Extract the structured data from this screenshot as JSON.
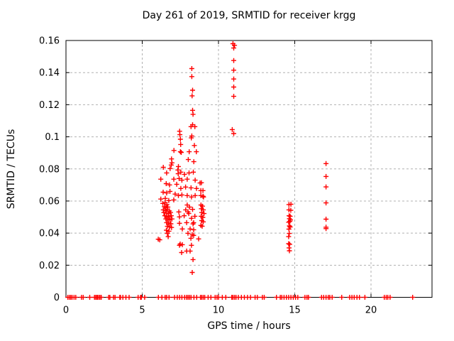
{
  "window": {
    "title": "Day 261 of 2019, SRMTID for receiver krgg"
  },
  "colors": {
    "background": "#ffffff",
    "marker": "#ff0000",
    "grid": "#b0b0b0",
    "axis": "#000000",
    "text": "#000000"
  },
  "chart_data": {
    "type": "scatter",
    "title": "Day 261 of 2019, SRMTID for receiver krgg",
    "xlabel": "GPS time / hours",
    "ylabel": "SRMTID / TECUs",
    "xlim": [
      0,
      24
    ],
    "ylim": [
      0,
      0.16
    ],
    "xticks": [
      0,
      5,
      10,
      15,
      20
    ],
    "xtick_labels": [
      "0",
      "5",
      "10",
      "15",
      "20"
    ],
    "yticks": [
      0,
      0.02,
      0.04,
      0.06,
      0.08,
      0.1,
      0.12,
      0.14,
      0.16
    ],
    "ytick_labels": [
      "0",
      "0.02",
      "0.04",
      "0.06",
      "0.08",
      "0.1",
      "0.12",
      "0.14",
      "0.16"
    ],
    "grid": true,
    "grid_style": "dashed",
    "legend": "none",
    "marker": "plus",
    "marker_size": 7,
    "series": [
      {
        "name": "SRMTID",
        "color": "#ff0000",
        "points": [
          [
            8.25,
            0.1425
          ],
          [
            8.25,
            0.1375
          ],
          [
            8.3,
            0.129
          ],
          [
            8.27,
            0.1255
          ],
          [
            8.3,
            0.1165
          ],
          [
            8.33,
            0.114
          ],
          [
            8.3,
            0.1075
          ],
          [
            8.2,
            0.1063
          ],
          [
            8.45,
            0.1063
          ],
          [
            8.25,
            0.1005
          ],
          [
            8.22,
            0.0993
          ],
          [
            7.45,
            0.1035
          ],
          [
            7.47,
            0.1013
          ],
          [
            7.5,
            0.0985
          ],
          [
            7.52,
            0.0952
          ],
          [
            7.5,
            0.0907
          ],
          [
            7.56,
            0.0903
          ],
          [
            7.08,
            0.0915
          ],
          [
            8.08,
            0.0907
          ],
          [
            8.42,
            0.0946
          ],
          [
            8.55,
            0.0907
          ],
          [
            8.02,
            0.0858
          ],
          [
            8.38,
            0.0845
          ],
          [
            6.92,
            0.0862
          ],
          [
            6.95,
            0.0838
          ],
          [
            6.9,
            0.0824
          ],
          [
            6.38,
            0.081
          ],
          [
            6.83,
            0.0802
          ],
          [
            7.37,
            0.0815
          ],
          [
            7.34,
            0.0793
          ],
          [
            6.6,
            0.0775
          ],
          [
            7.53,
            0.078
          ],
          [
            7.77,
            0.0766
          ],
          [
            8.07,
            0.0775
          ],
          [
            8.35,
            0.078
          ],
          [
            7.36,
            0.077
          ],
          [
            6.22,
            0.0736
          ],
          [
            7.07,
            0.0736
          ],
          [
            7.42,
            0.074
          ],
          [
            7.6,
            0.073
          ],
          [
            7.95,
            0.0736
          ],
          [
            8.47,
            0.073
          ],
          [
            6.57,
            0.0708
          ],
          [
            6.79,
            0.07
          ],
          [
            7.26,
            0.0704
          ],
          [
            8.88,
            0.0714
          ],
          [
            7.53,
            0.0678
          ],
          [
            7.84,
            0.0687
          ],
          [
            8.2,
            0.0682
          ],
          [
            8.56,
            0.0678
          ],
          [
            8.79,
            0.0712
          ],
          [
            6.37,
            0.0655
          ],
          [
            6.6,
            0.065
          ],
          [
            6.82,
            0.066
          ],
          [
            8.84,
            0.0665
          ],
          [
            8.98,
            0.0665
          ],
          [
            7.16,
            0.0643
          ],
          [
            7.37,
            0.0634
          ],
          [
            7.6,
            0.0638
          ],
          [
            7.95,
            0.0634
          ],
          [
            8.23,
            0.0625
          ],
          [
            8.47,
            0.0634
          ],
          [
            9.02,
            0.0625
          ],
          [
            6.22,
            0.0612
          ],
          [
            6.51,
            0.0616
          ],
          [
            6.74,
            0.0603
          ],
          [
            7.07,
            0.0607
          ],
          [
            8.84,
            0.0634
          ],
          [
            8.98,
            0.063
          ],
          [
            6.35,
            0.0585
          ],
          [
            6.5,
            0.059
          ],
          [
            6.62,
            0.0578
          ],
          [
            6.45,
            0.0565
          ],
          [
            6.55,
            0.0558
          ],
          [
            6.68,
            0.0562
          ],
          [
            6.38,
            0.0545
          ],
          [
            6.52,
            0.0542
          ],
          [
            6.65,
            0.0548
          ],
          [
            6.78,
            0.0538
          ],
          [
            6.42,
            0.0528
          ],
          [
            6.58,
            0.0525
          ],
          [
            6.7,
            0.0522
          ],
          [
            6.85,
            0.0528
          ],
          [
            6.48,
            0.0508
          ],
          [
            6.6,
            0.0505
          ],
          [
            6.75,
            0.0502
          ],
          [
            6.9,
            0.0508
          ],
          [
            6.55,
            0.0488
          ],
          [
            6.68,
            0.0485
          ],
          [
            6.82,
            0.0482
          ],
          [
            6.95,
            0.0488
          ],
          [
            6.6,
            0.0465
          ],
          [
            6.72,
            0.0462
          ],
          [
            6.88,
            0.0458
          ],
          [
            6.65,
            0.0442
          ],
          [
            6.8,
            0.0438
          ],
          [
            6.92,
            0.0435
          ],
          [
            6.58,
            0.0418
          ],
          [
            6.75,
            0.0412
          ],
          [
            6.65,
            0.0398
          ],
          [
            6.7,
            0.0378
          ],
          [
            6.05,
            0.0362
          ],
          [
            6.15,
            0.0358
          ],
          [
            7.95,
            0.0575
          ],
          [
            8.1,
            0.0562
          ],
          [
            8.3,
            0.0548
          ],
          [
            7.85,
            0.0545
          ],
          [
            8.05,
            0.0522
          ],
          [
            7.75,
            0.0508
          ],
          [
            8.45,
            0.0505
          ],
          [
            7.4,
            0.0532
          ],
          [
            8.0,
            0.0532
          ],
          [
            7.44,
            0.0501
          ],
          [
            8.23,
            0.0492
          ],
          [
            7.44,
            0.0461
          ],
          [
            7.91,
            0.0465
          ],
          [
            8.33,
            0.0457
          ],
          [
            8.37,
            0.0465
          ],
          [
            7.63,
            0.0426
          ],
          [
            8.14,
            0.0426
          ],
          [
            8.37,
            0.0421
          ],
          [
            8.0,
            0.0399
          ],
          [
            8.28,
            0.039
          ],
          [
            8.37,
            0.0386
          ],
          [
            8.19,
            0.0368
          ],
          [
            8.7,
            0.0364
          ],
          [
            7.49,
            0.0332
          ],
          [
            7.63,
            0.0328
          ],
          [
            7.44,
            0.0324
          ],
          [
            8.23,
            0.0324
          ],
          [
            7.58,
            0.0279
          ],
          [
            7.91,
            0.0288
          ],
          [
            8.14,
            0.0288
          ],
          [
            8.33,
            0.0235
          ],
          [
            8.28,
            0.0155
          ],
          [
            8.85,
            0.0575
          ],
          [
            8.95,
            0.0568
          ],
          [
            8.88,
            0.0552
          ],
          [
            9.0,
            0.0545
          ],
          [
            8.9,
            0.0528
          ],
          [
            9.05,
            0.0522
          ],
          [
            8.86,
            0.0505
          ],
          [
            8.97,
            0.0498
          ],
          [
            8.9,
            0.0478
          ],
          [
            9.0,
            0.047
          ],
          [
            8.84,
            0.0448
          ],
          [
            8.93,
            0.0443
          ],
          [
            10.95,
            0.158
          ],
          [
            11.05,
            0.157
          ],
          [
            11.0,
            0.1553
          ],
          [
            11.0,
            0.1475
          ],
          [
            11.0,
            0.1415
          ],
          [
            11.0,
            0.136
          ],
          [
            11.0,
            0.131
          ],
          [
            11.0,
            0.1252
          ],
          [
            10.9,
            0.1045
          ],
          [
            11.0,
            0.102
          ],
          [
            14.62,
            0.0578
          ],
          [
            14.75,
            0.058
          ],
          [
            14.62,
            0.0545
          ],
          [
            14.74,
            0.0542
          ],
          [
            14.63,
            0.0508
          ],
          [
            14.7,
            0.0505
          ],
          [
            14.65,
            0.049
          ],
          [
            14.72,
            0.0482
          ],
          [
            14.68,
            0.0473
          ],
          [
            14.6,
            0.0468
          ],
          [
            14.65,
            0.0445
          ],
          [
            14.7,
            0.0438
          ],
          [
            14.62,
            0.0425
          ],
          [
            14.64,
            0.0398
          ],
          [
            14.6,
            0.0378
          ],
          [
            14.6,
            0.0334
          ],
          [
            14.67,
            0.033
          ],
          [
            14.63,
            0.0308
          ],
          [
            14.65,
            0.029
          ],
          [
            17.05,
            0.0833
          ],
          [
            17.05,
            0.0753
          ],
          [
            17.05,
            0.0688
          ],
          [
            17.05,
            0.0588
          ],
          [
            17.05,
            0.0487
          ],
          [
            17.05,
            0.0437
          ],
          [
            17.05,
            0.0428
          ],
          [
            0.12,
            0
          ],
          [
            0.22,
            0
          ],
          [
            0.31,
            0
          ],
          [
            0.4,
            0
          ],
          [
            0.53,
            0
          ],
          [
            0.64,
            0
          ],
          [
            1.02,
            0
          ],
          [
            1.13,
            0
          ],
          [
            1.56,
            0
          ],
          [
            1.87,
            0
          ],
          [
            1.95,
            0
          ],
          [
            2.03,
            0
          ],
          [
            2.06,
            0
          ],
          [
            2.15,
            0
          ],
          [
            2.23,
            0
          ],
          [
            2.31,
            0
          ],
          [
            2.8,
            0
          ],
          [
            2.88,
            0
          ],
          [
            3.12,
            0
          ],
          [
            3.22,
            0
          ],
          [
            3.53,
            0
          ],
          [
            3.57,
            0
          ],
          [
            3.73,
            0
          ],
          [
            3.93,
            0
          ],
          [
            4.14,
            0
          ],
          [
            4.73,
            0
          ],
          [
            4.89,
            0
          ],
          [
            4.94,
            0
          ],
          [
            5.16,
            0
          ],
          [
            6.06,
            0
          ],
          [
            6.29,
            0
          ],
          [
            6.5,
            0
          ],
          [
            6.6,
            0
          ],
          [
            6.76,
            0
          ],
          [
            7.12,
            0
          ],
          [
            7.3,
            0
          ],
          [
            7.45,
            0
          ],
          [
            7.6,
            0
          ],
          [
            7.78,
            0
          ],
          [
            7.9,
            0
          ],
          [
            8.0,
            0
          ],
          [
            8.1,
            0
          ],
          [
            8.2,
            0
          ],
          [
            8.39,
            0
          ],
          [
            8.57,
            0
          ],
          [
            8.82,
            0
          ],
          [
            8.9,
            0
          ],
          [
            9.0,
            0
          ],
          [
            9.1,
            0
          ],
          [
            9.32,
            0
          ],
          [
            9.5,
            0
          ],
          [
            9.78,
            0
          ],
          [
            9.9,
            0
          ],
          [
            10.0,
            0
          ],
          [
            10.25,
            0
          ],
          [
            10.48,
            0
          ],
          [
            10.87,
            0
          ],
          [
            10.95,
            0
          ],
          [
            11.05,
            0
          ],
          [
            11.15,
            0
          ],
          [
            11.3,
            0
          ],
          [
            11.5,
            0
          ],
          [
            11.7,
            0
          ],
          [
            11.9,
            0
          ],
          [
            12.1,
            0
          ],
          [
            12.4,
            0
          ],
          [
            12.55,
            0
          ],
          [
            12.88,
            0
          ],
          [
            13.0,
            0
          ],
          [
            13.8,
            0
          ],
          [
            14.05,
            0
          ],
          [
            14.15,
            0
          ],
          [
            14.3,
            0
          ],
          [
            14.45,
            0
          ],
          [
            14.6,
            0
          ],
          [
            14.75,
            0
          ],
          [
            14.9,
            0
          ],
          [
            15.05,
            0
          ],
          [
            15.2,
            0
          ],
          [
            15.67,
            0
          ],
          [
            15.8,
            0
          ],
          [
            15.9,
            0
          ],
          [
            16.76,
            0
          ],
          [
            16.9,
            0
          ],
          [
            17.05,
            0
          ],
          [
            17.2,
            0
          ],
          [
            17.3,
            0
          ],
          [
            17.45,
            0
          ],
          [
            18.08,
            0
          ],
          [
            18.6,
            0
          ],
          [
            18.75,
            0
          ],
          [
            18.9,
            0
          ],
          [
            19.08,
            0
          ],
          [
            19.24,
            0
          ],
          [
            19.6,
            0
          ],
          [
            20.87,
            0
          ],
          [
            21.0,
            0
          ],
          [
            21.1,
            0
          ],
          [
            21.25,
            0
          ],
          [
            22.73,
            0
          ]
        ]
      }
    ]
  }
}
